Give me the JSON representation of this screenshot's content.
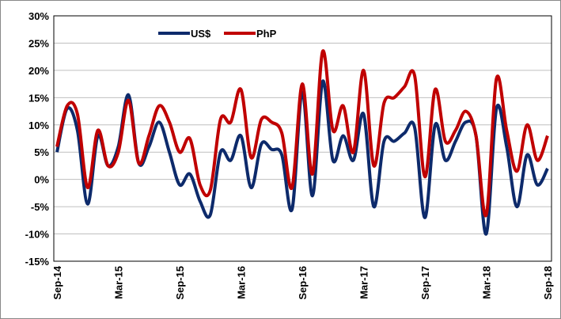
{
  "chart_data": {
    "type": "line",
    "categories": [
      "Sep-14",
      null,
      null,
      null,
      null,
      null,
      "Mar-15",
      null,
      null,
      null,
      null,
      null,
      "Sep-15",
      null,
      null,
      null,
      null,
      null,
      "Mar-16",
      null,
      null,
      null,
      null,
      null,
      "Sep-16",
      null,
      null,
      null,
      null,
      null,
      "Mar-17",
      null,
      null,
      null,
      null,
      null,
      "Sep-17",
      null,
      null,
      null,
      null,
      null,
      "Mar-18",
      null,
      null,
      null,
      null,
      null,
      "Sep-18"
    ],
    "series": [
      {
        "name": "US$",
        "color": "#0d2a6b",
        "values": [
          5,
          13,
          9,
          -4.5,
          8,
          2.5,
          6,
          15.5,
          3,
          6,
          10.5,
          5,
          -1,
          1,
          -4,
          -6.5,
          5,
          3.5,
          8,
          -1.5,
          6.5,
          5.5,
          4.5,
          -5.5,
          16,
          -3,
          18,
          3.5,
          8,
          3.5,
          12,
          -5,
          7,
          7,
          8.5,
          9.5,
          -7,
          10,
          3.5,
          7,
          10.5,
          8,
          -10,
          13,
          6,
          -5,
          4.5,
          -1,
          2
        ]
      },
      {
        "name": "PhP",
        "color": "#c00000",
        "values": [
          6,
          13.5,
          12,
          -1.5,
          9,
          2.5,
          5,
          14.5,
          3,
          8,
          13.5,
          10.5,
          5,
          7.5,
          -1,
          -2,
          11,
          10.5,
          16.5,
          4,
          11,
          10.5,
          8.5,
          -1.5,
          17.5,
          1,
          23.5,
          9,
          13.5,
          5,
          20,
          2.5,
          14,
          15,
          17,
          19,
          0.5,
          16.5,
          7,
          9,
          12.5,
          8,
          -6.5,
          18.5,
          9,
          1.5,
          10,
          3.5,
          8
        ]
      }
    ],
    "ylim": [
      -15,
      30
    ],
    "yticks": [
      {
        "value": -15,
        "label": "-15%"
      },
      {
        "value": -10,
        "label": "-10%"
      },
      {
        "value": -5,
        "label": "-5%"
      },
      {
        "value": 0,
        "label": "0%"
      },
      {
        "value": 5,
        "label": "5%"
      },
      {
        "value": 10,
        "label": "10%"
      },
      {
        "value": 15,
        "label": "15%"
      },
      {
        "value": 20,
        "label": "20%"
      },
      {
        "value": 25,
        "label": "25%"
      },
      {
        "value": 30,
        "label": "30%"
      }
    ],
    "grid": true
  }
}
